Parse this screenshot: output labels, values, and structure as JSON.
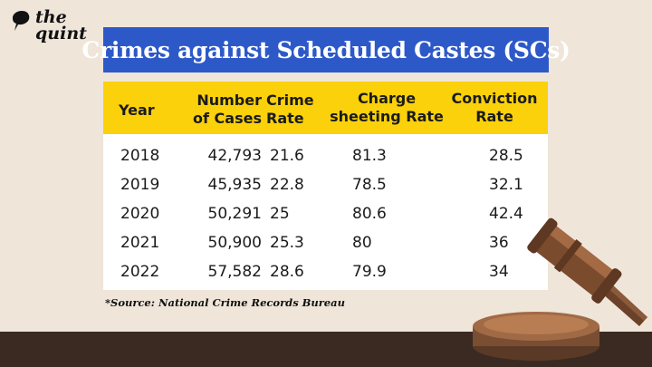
{
  "brand": {
    "line1": "the",
    "line2": "quint"
  },
  "title": "Crimes against Scheduled Castes (SCs)",
  "table": {
    "headers": {
      "year": "Year",
      "cases_1": "Number",
      "cases_2": "of Cases",
      "rate_1": "Crime",
      "rate_2": "Rate",
      "charge_1": "Charge",
      "charge_2": "sheeting Rate",
      "conv_1": "Conviction",
      "conv_2": "Rate"
    },
    "rows": [
      {
        "year": "2018",
        "cases": "42,793",
        "crime_rate": "21.6",
        "charge_rate": "81.3",
        "conviction_rate": "28.5"
      },
      {
        "year": "2019",
        "cases": "45,935",
        "crime_rate": "22.8",
        "charge_rate": "78.5",
        "conviction_rate": "32.1"
      },
      {
        "year": "2020",
        "cases": "50,291",
        "crime_rate": "25",
        "charge_rate": "80.6",
        "conviction_rate": "42.4"
      },
      {
        "year": "2021",
        "cases": "50,900",
        "crime_rate": "25.3",
        "charge_rate": "80",
        "conviction_rate": "36"
      },
      {
        "year": "2022",
        "cases": "57,582",
        "crime_rate": "28.6",
        "charge_rate": "79.9",
        "conviction_rate": "34"
      }
    ]
  },
  "source": "*Source: National Crime Records Bureau",
  "colors": {
    "title_bg": "#2d59c8",
    "header_bg": "#fbd10b",
    "page_bg": "#efe5d9",
    "floor": "#3a2a21"
  },
  "icons": {
    "logo": "the-quint-logo",
    "illustration": "gavel-icon"
  }
}
